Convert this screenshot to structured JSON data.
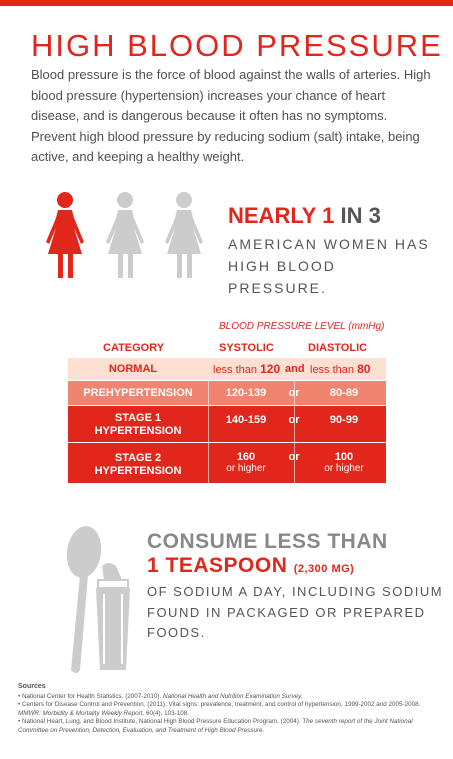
{
  "title": "HIGH BLOOD PRESSURE",
  "intro": "Blood pressure is the force of blood against the walls of arteries. High blood pressure (hypertension) increases your chance of heart disease, and is dangerous because it often has no symptoms. Prevent high blood pressure by reducing sodium (salt) intake, being active, and keeping a healthy weight.",
  "stat": {
    "nearly": "NEARLY 1",
    "in": "IN 3",
    "line1": "AMERICAN WOMEN HAS",
    "line2": "HIGH BLOOD PRESSURE."
  },
  "table": {
    "level_label": "BLOOD PRESSURE LEVEL (mmHg)",
    "headers": {
      "category": "CATEGORY",
      "systolic": "SYSTOLIC",
      "diastolic": "DIASTOLIC"
    },
    "rows": [
      {
        "category": "NORMAL",
        "systolic_pre": "less than",
        "systolic_val": "120",
        "joiner": "and",
        "diastolic_pre": "less than",
        "diastolic_val": "80",
        "bg": "#fde0d2",
        "fg": "#e1261c"
      },
      {
        "category": "PREHYPERTENSION",
        "systolic": "120-139",
        "joiner": "or",
        "diastolic": "80-89",
        "bg": "#f0846e",
        "fg": "#ffffff"
      },
      {
        "category_l1": "STAGE 1",
        "category_l2": "HYPERTENSION",
        "systolic": "140-159",
        "joiner": "or",
        "diastolic": "90-99",
        "bg": "#e1261c",
        "fg": "#ffffff"
      },
      {
        "category_l1": "STAGE 2",
        "category_l2": "HYPERTENSION",
        "systolic": "160",
        "systolic_sub": "or higher",
        "joiner": "or",
        "diastolic": "100",
        "diastolic_sub": "or higher",
        "bg": "#e1261c",
        "fg": "#ffffff"
      }
    ]
  },
  "consume": {
    "line1": "CONSUME LESS THAN",
    "line2": "1 TEASPOON",
    "line2_small": "(2,300 MG)",
    "body": "OF SODIUM A DAY, INCLUDING SODIUM FOUND IN PACKAGED OR PREPARED FOODS."
  },
  "sources": {
    "title": "Sources",
    "s1_pre": "• National Center for Health Statistics. (2007-2010). ",
    "s1_it": "National Health and Nutrition Examination Survey.",
    "s2_pre": "• Centers for Disease Control and Prevention. (2011). Vital signs: prevalence, treatment, and control of hypertension, 1999-2002 and 2005-2008. ",
    "s2_it": "MMWR: Morbidity & Mortality Weekly Report,",
    "s2_post": " 60(4), 103-108.",
    "s3_pre": "• National Heart, Lung, and Blood Institute, National High Blood Pressure Education Program. (2004). ",
    "s3_it": "The seventh report of the Joint National Committee on Prevention, Detection, Evaluation, and Treatment of High Blood Pressure."
  },
  "colors": {
    "red": "#e1261c",
    "light_pink": "#fde0d2",
    "salmon": "#f0846e",
    "gray_text": "#4d4d4d",
    "gray_icon": "#cccccc"
  },
  "icons": [
    "woman-figure-icon",
    "spoon-icon",
    "salt-shaker-icon"
  ]
}
